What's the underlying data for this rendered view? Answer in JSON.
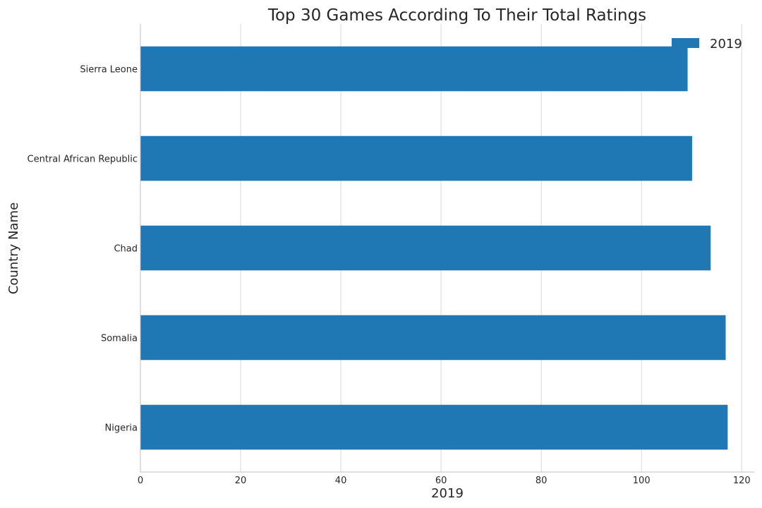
{
  "chart_data": {
    "type": "bar",
    "orientation": "horizontal",
    "title": "Top 30 Games According To Their Total Ratings",
    "xlabel": "2019",
    "ylabel": "Country Name",
    "categories": [
      "Sierra Leone",
      "Central African Republic",
      "Chad",
      "Somalia",
      "Nigeria"
    ],
    "series": [
      {
        "name": "2019",
        "values": [
          109.2,
          110.1,
          113.8,
          116.8,
          117.2
        ],
        "color": "#1f77b4"
      }
    ],
    "xlim": [
      0,
      122.5
    ],
    "xticks": [
      0,
      20,
      40,
      60,
      80,
      100,
      120
    ],
    "grid": true,
    "legend_position": "top-right"
  }
}
